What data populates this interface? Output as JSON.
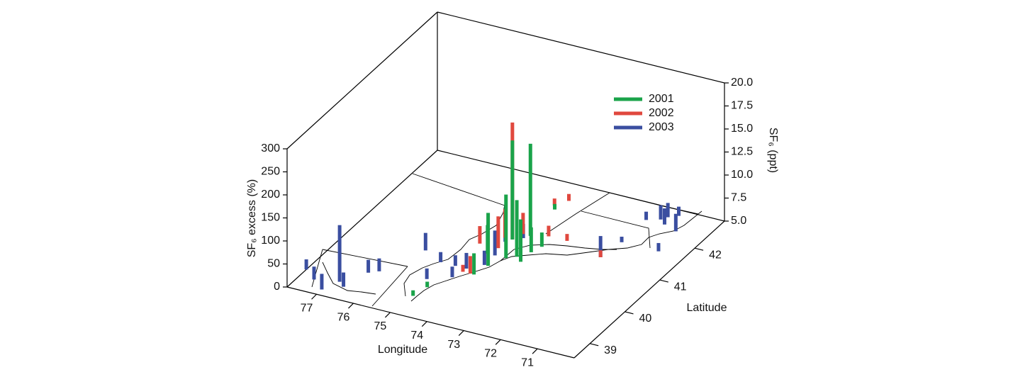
{
  "chart_data": {
    "type": "bar3d",
    "xlabel": "Longitude",
    "ylabel": "Latitude",
    "zlabel": "SF₆ excess (%)",
    "z2label": "SF₆ (ppt)",
    "xlim": [
      77.8,
      70.0
    ],
    "xticks": [
      77,
      76,
      75,
      74,
      73,
      72,
      71
    ],
    "ylim": [
      38.55,
      42.85
    ],
    "yticks": [
      39,
      40,
      41,
      42
    ],
    "zlim": [
      0,
      300
    ],
    "zticks": [
      0,
      50,
      100,
      150,
      200,
      250,
      300
    ],
    "z2lim": [
      5,
      20
    ],
    "z2ticks": [
      {
        "value": 5,
        "label": "5.0"
      },
      7.5,
      {
        "value": 10,
        "label": "10.0"
      },
      12.5,
      {
        "value": 15,
        "label": "15.0"
      },
      17.5,
      {
        "value": 20,
        "label": "20.0"
      }
    ],
    "series": [
      {
        "name": "2001",
        "color": "#1aa34a",
        "lon": [
          74.1,
          73.8,
          74.9,
          74.8,
          74.1,
          74.3,
          74.0,
          73.8,
          73.6,
          73.4,
          73.4,
          73.3,
          73.9
        ],
        "lat": [
          41.1,
          41.3,
          39.1,
          39.4,
          40.0,
          40.6,
          40.3,
          40.6,
          40.7,
          40.6,
          40.9,
          41.1,
          42.1
        ],
        "values": [
          215,
          200,
          12,
          12,
          46,
          62,
          115,
          138,
          123,
          92,
          54,
          31,
          12
        ]
      },
      {
        "name": "2002",
        "color": "#e0483e",
        "lon": [
          74.1,
          74.2,
          74.4,
          74.7,
          74.2,
          74.3,
          74.0,
          73.4,
          74.0,
          73.8,
          71.8,
          72.9
        ],
        "lat": [
          41.1,
          40.0,
          40.0,
          40.8,
          40.8,
          41.1,
          41.3,
          41.4,
          42.2,
          42.4,
          41.2,
          41.4
        ],
        "values": [
          254,
          38,
          15,
          38,
          69,
          62,
          46,
          23,
          15,
          15,
          15,
          15
        ]
      },
      {
        "name": "2003",
        "color": "#3a4ea0",
        "lon": [
          77.8,
          77.4,
          77.0,
          76.8,
          76.6,
          76.4,
          76.2,
          75.7,
          75.0,
          75.1,
          74.5,
          74.7,
          74.4,
          74.1,
          74.1,
          71.8,
          71.7,
          71.7,
          70.7,
          71.4,
          71.2,
          71.3,
          70.8,
          71.1,
          73.9,
          74.2
        ],
        "lat": [
          39.1,
          38.9,
          38.7,
          39.0,
          38.9,
          39.4,
          39.5,
          40.3,
          39.6,
          40.1,
          39.8,
          40.1,
          40.1,
          40.3,
          40.6,
          41.2,
          41.7,
          42.4,
          41.7,
          42.5,
          42.4,
          42.6,
          42.3,
          42.7,
          41.2,
          41.0
        ],
        "values": [
          22,
          28,
          34,
          123,
          31,
          28,
          28,
          38,
          23,
          22,
          23,
          23,
          34,
          31,
          54,
          46,
          12,
          18,
          18,
          31,
          35,
          31,
          38,
          20,
          31,
          46
        ]
      }
    ]
  }
}
